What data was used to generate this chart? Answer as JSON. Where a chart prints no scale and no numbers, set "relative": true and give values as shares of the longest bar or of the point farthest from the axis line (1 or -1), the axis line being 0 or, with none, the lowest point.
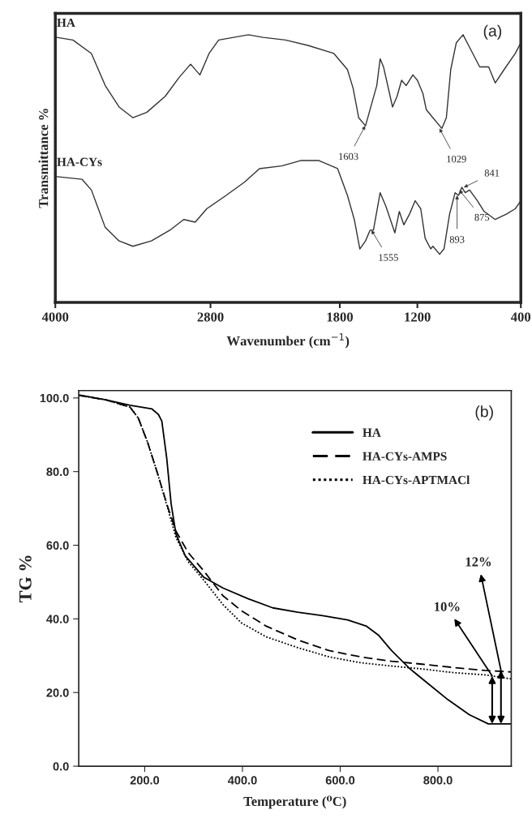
{
  "chart_data": [
    {
      "type": "line",
      "xlabel": "Wavenumber (cm$^{−1}$)",
      "ylabel": "Transmittance %",
      "relative": true,
      "xlim": [
        4000,
        400
      ],
      "xticks": [
        4000,
        2800,
        1800,
        1200,
        400
      ],
      "grid": false,
      "legend": false,
      "line_style": "solid",
      "annotations": [
        "(a)",
        {
          "text": "1603",
          "x": 1603,
          "y": 0.66
        },
        {
          "text": "1029",
          "x": 1029,
          "y": 0.65
        },
        {
          "text": "1555",
          "x": 1555,
          "y": 0.27
        },
        {
          "text": "893",
          "x": 893,
          "y": 0.4
        },
        {
          "text": "875",
          "x": 875,
          "y": 0.42
        },
        {
          "text": "841",
          "x": 841,
          "y": 0.43
        }
      ],
      "series": [
        {
          "name": "HA",
          "color": "#333333",
          "x": [
            3989,
            3864,
            3721,
            3614,
            3507,
            3400,
            3293,
            3150,
            3043,
            2954,
            2882,
            2811,
            2737,
            2622,
            2507,
            2392,
            2219,
            2047,
            1846,
            1741,
            1697,
            1654,
            1601,
            1549,
            1514,
            1488,
            1462,
            1392,
            1357,
            1322,
            1287,
            1235,
            1200,
            1157,
            1131,
            1080,
            1011,
            976,
            942,
            899,
            847,
            804,
            761,
            718,
            649,
            598,
            529,
            443,
            400
          ],
          "values": [
            0.99,
            0.98,
            0.93,
            0.81,
            0.73,
            0.69,
            0.71,
            0.77,
            0.84,
            0.89,
            0.85,
            0.93,
            0.98,
            0.99,
            1.0,
            0.99,
            0.98,
            0.96,
            0.93,
            0.87,
            0.8,
            0.69,
            0.66,
            0.75,
            0.81,
            0.91,
            0.88,
            0.73,
            0.77,
            0.83,
            0.81,
            0.85,
            0.83,
            0.78,
            0.72,
            0.69,
            0.65,
            0.69,
            0.87,
            0.97,
            1.0,
            0.96,
            0.92,
            0.88,
            0.88,
            0.82,
            0.87,
            0.93,
            0.97
          ]
        },
        {
          "name": "HA-CYs",
          "color": "#333333",
          "x": [
            3989,
            3793,
            3721,
            3614,
            3507,
            3400,
            3257,
            3114,
            3007,
            2918,
            2829,
            2679,
            2536,
            2421,
            2248,
            2104,
            1961,
            1817,
            1741,
            1688,
            1645,
            1601,
            1566,
            1540,
            1488,
            1444,
            1374,
            1340,
            1305,
            1261,
            1217,
            1174,
            1140,
            1097,
            1080,
            1028,
            994,
            951,
            908,
            882,
            856,
            830,
            796,
            736,
            684,
            598,
            512,
            443,
            400
          ],
          "values": [
            0.47,
            0.46,
            0.42,
            0.28,
            0.23,
            0.21,
            0.23,
            0.27,
            0.31,
            0.3,
            0.35,
            0.4,
            0.45,
            0.5,
            0.51,
            0.53,
            0.53,
            0.5,
            0.4,
            0.31,
            0.2,
            0.23,
            0.27,
            0.27,
            0.41,
            0.36,
            0.26,
            0.34,
            0.29,
            0.33,
            0.38,
            0.35,
            0.24,
            0.2,
            0.21,
            0.18,
            0.2,
            0.33,
            0.41,
            0.4,
            0.43,
            0.41,
            0.42,
            0.38,
            0.34,
            0.31,
            0.33,
            0.35,
            0.38
          ]
        }
      ]
    },
    {
      "type": "line",
      "xlabel": "Temperature (⁰C)",
      "ylabel": "TG %",
      "xlim": [
        65,
        950
      ],
      "ylim": [
        0,
        102
      ],
      "grid": false,
      "legend": "top right",
      "xticks": [
        {
          "value": 200,
          "label": "200.0"
        },
        {
          "value": 400,
          "label": "400.0"
        },
        {
          "value": 600,
          "label": "600.0"
        },
        {
          "value": 800,
          "label": "800.0"
        }
      ],
      "yticks": [
        {
          "value": 0,
          "label": "0.0"
        },
        {
          "value": 20,
          "label": "20.0"
        },
        {
          "value": 40,
          "label": "40.0"
        },
        {
          "value": 60,
          "label": "60.0"
        },
        {
          "value": 80,
          "label": "80.0"
        },
        {
          "value": 100,
          "label": "100.0"
        }
      ],
      "annotations": [
        "(b)",
        {
          "text": "10%",
          "x": 911,
          "y": 24.5
        },
        {
          "text": "12%",
          "x": 929,
          "y": 26
        }
      ],
      "series": [
        {
          "name": "HA",
          "color": "#000000",
          "line_style": "solid",
          "x": [
            65,
            120,
            170,
            215,
            228,
            235,
            245,
            254,
            264,
            283,
            321,
            360,
            411,
            462,
            513,
            564,
            615,
            654,
            679,
            705,
            743,
            781,
            820,
            864,
            903,
            950
          ],
          "values": [
            100.8,
            99.5,
            98.0,
            97.0,
            95.5,
            93.7,
            83.7,
            71.3,
            63.0,
            57.1,
            51.3,
            48.4,
            45.5,
            43.0,
            41.8,
            40.9,
            39.7,
            38.0,
            35.5,
            31.4,
            26.4,
            22.3,
            18.1,
            14.0,
            11.5,
            11.5
          ]
        },
        {
          "name": "HA-CYs-AMPS",
          "color": "#000000",
          "line_style": "dashed",
          "x": [
            65,
            120,
            170,
            187,
            206,
            226,
            245,
            264,
            289,
            321,
            360,
            398,
            449,
            513,
            577,
            641,
            705,
            768,
            832,
            896,
            950
          ],
          "values": [
            100.7,
            99.5,
            97.5,
            94.5,
            87.9,
            79.6,
            71.3,
            63.8,
            58.0,
            53.0,
            46.3,
            42.2,
            38.0,
            34.3,
            31.4,
            29.7,
            28.5,
            27.7,
            26.8,
            26.0,
            25.6
          ]
        },
        {
          "name": "HA-CYs-APTMACl",
          "color": "#000000",
          "line_style": "dotted",
          "x": [
            65,
            120,
            170,
            187,
            206,
            226,
            245,
            264,
            289,
            321,
            360,
            398,
            449,
            513,
            577,
            641,
            705,
            768,
            832,
            896,
            950
          ],
          "values": [
            100.7,
            99.5,
            97.5,
            94.5,
            87.9,
            79.6,
            71.0,
            62.1,
            55.5,
            50.5,
            43.9,
            38.9,
            35.1,
            32.2,
            29.7,
            28.1,
            27.2,
            26.4,
            25.4,
            24.8,
            23.7
          ]
        }
      ]
    }
  ]
}
